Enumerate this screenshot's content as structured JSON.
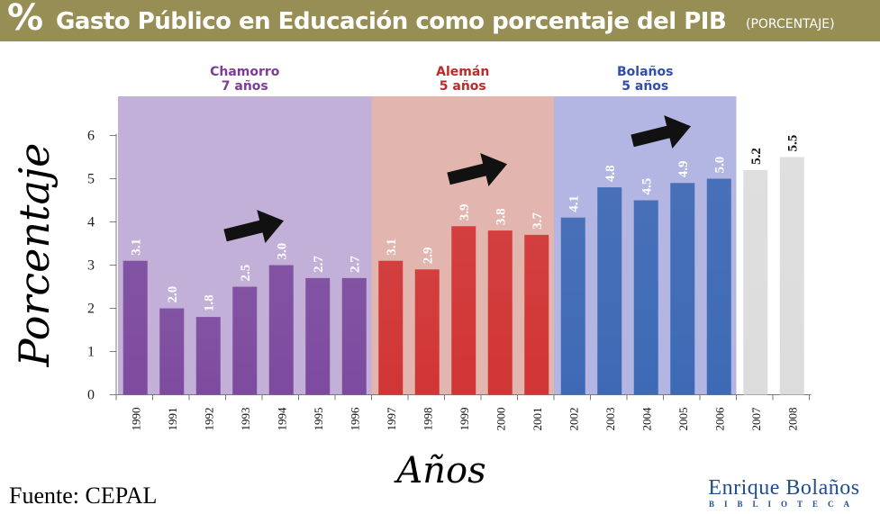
{
  "header": {
    "percent_symbol": "%",
    "title": "Gasto Público en Educación como porcentaje del PIB",
    "subtitle": "(PORCENTAJE)"
  },
  "footer": {
    "source": "Fuente: CEPAL",
    "logo_line1": "Enrique Bolaños",
    "logo_line2": "BIBLIOTECA"
  },
  "colors": {
    "header_bg": "#978e55",
    "chamorro": "#7d4b9e",
    "aleman": "#d13535",
    "bolanos": "#3e6ab5",
    "other": "#dcdcdc"
  },
  "chart_data": {
    "type": "bar",
    "title": "Gasto Público en Educación como porcentaje del PIB",
    "subtitle": "(PORCENTAJE)",
    "xlabel": "Años",
    "ylabel": "Porcentaje",
    "ylim": [
      0,
      6
    ],
    "yticks": [
      0,
      1,
      2,
      3,
      4,
      5,
      6
    ],
    "categories": [
      "1990",
      "1991",
      "1992",
      "1993",
      "1994",
      "1995",
      "1996",
      "1997",
      "1998",
      "1999",
      "2000",
      "2001",
      "2002",
      "2003",
      "2004",
      "2005",
      "2006",
      "2007",
      "2008"
    ],
    "values": [
      3.1,
      2.0,
      1.8,
      2.5,
      3.0,
      2.7,
      2.7,
      3.1,
      2.9,
      3.9,
      3.8,
      3.7,
      4.1,
      4.8,
      4.5,
      4.9,
      5.0,
      5.2,
      5.5
    ],
    "value_labels": [
      "3.1",
      "2.0",
      "1.8",
      "2.5",
      "3.0",
      "2.7",
      "2.7",
      "3.1",
      "2.9",
      "3.9",
      "3.8",
      "3.7",
      "4.1",
      "4.8",
      "4.5",
      "4.9",
      "5.0",
      "5.2",
      "5.5"
    ],
    "periods": [
      {
        "name": "Chamorro",
        "duration": "7 años",
        "start": 0,
        "end": 6,
        "color": "#7d4b9e",
        "bg": "#c3b0d8",
        "label_color": "#7d3c98"
      },
      {
        "name": "Alemán",
        "duration": "5 años",
        "start": 7,
        "end": 11,
        "color": "#d13535",
        "bg": "#e2b5ae",
        "label_color": "#c0282a"
      },
      {
        "name": "Bolaños",
        "duration": "5 años",
        "start": 12,
        "end": 16,
        "color": "#3e6ab5",
        "bg": "#b3b6e2",
        "label_color": "#2f4fa8"
      }
    ],
    "annotations": [
      {
        "type": "arrow",
        "period": "Chamorro",
        "direction": "up-right"
      },
      {
        "type": "arrow",
        "period": "Alemán",
        "direction": "up-right"
      },
      {
        "type": "arrow",
        "period": "Bolaños",
        "direction": "up-right"
      }
    ],
    "grid": false,
    "legend": "none"
  }
}
